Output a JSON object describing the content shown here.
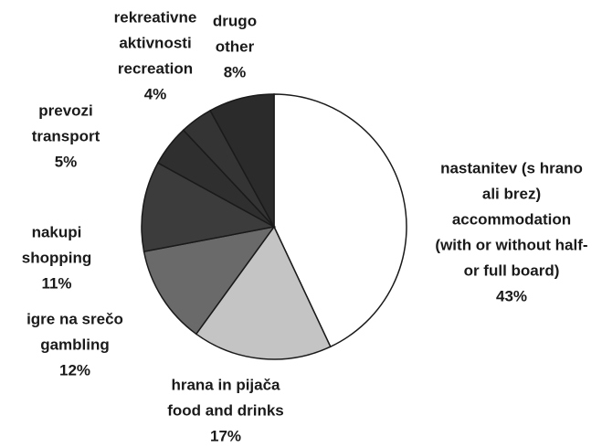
{
  "chart_data": {
    "type": "pie",
    "categories": [
      [
        "nastanitev (s hrano",
        "ali brez)",
        "accommodation",
        "(with or without half-",
        "or full board)"
      ],
      [
        "hrana in pijača",
        "food and drinks"
      ],
      [
        "igre na srečo",
        "gambling"
      ],
      [
        "nakupi",
        "shopping"
      ],
      [
        "prevozi",
        "transport"
      ],
      [
        "rekreativne",
        "aktivnosti",
        "recreation"
      ],
      [
        "drugo",
        "other"
      ]
    ],
    "values": [
      43,
      17,
      12,
      11,
      5,
      4,
      8
    ],
    "value_labels": [
      "43%",
      "17%",
      "12%",
      "11%",
      "5%",
      "4%",
      "8%"
    ],
    "colors": [
      "#ffffff",
      "#c4c4c4",
      "#6a6a6a",
      "#3c3c3c",
      "#2f2f2f",
      "#343434",
      "#2b2b2b"
    ]
  }
}
